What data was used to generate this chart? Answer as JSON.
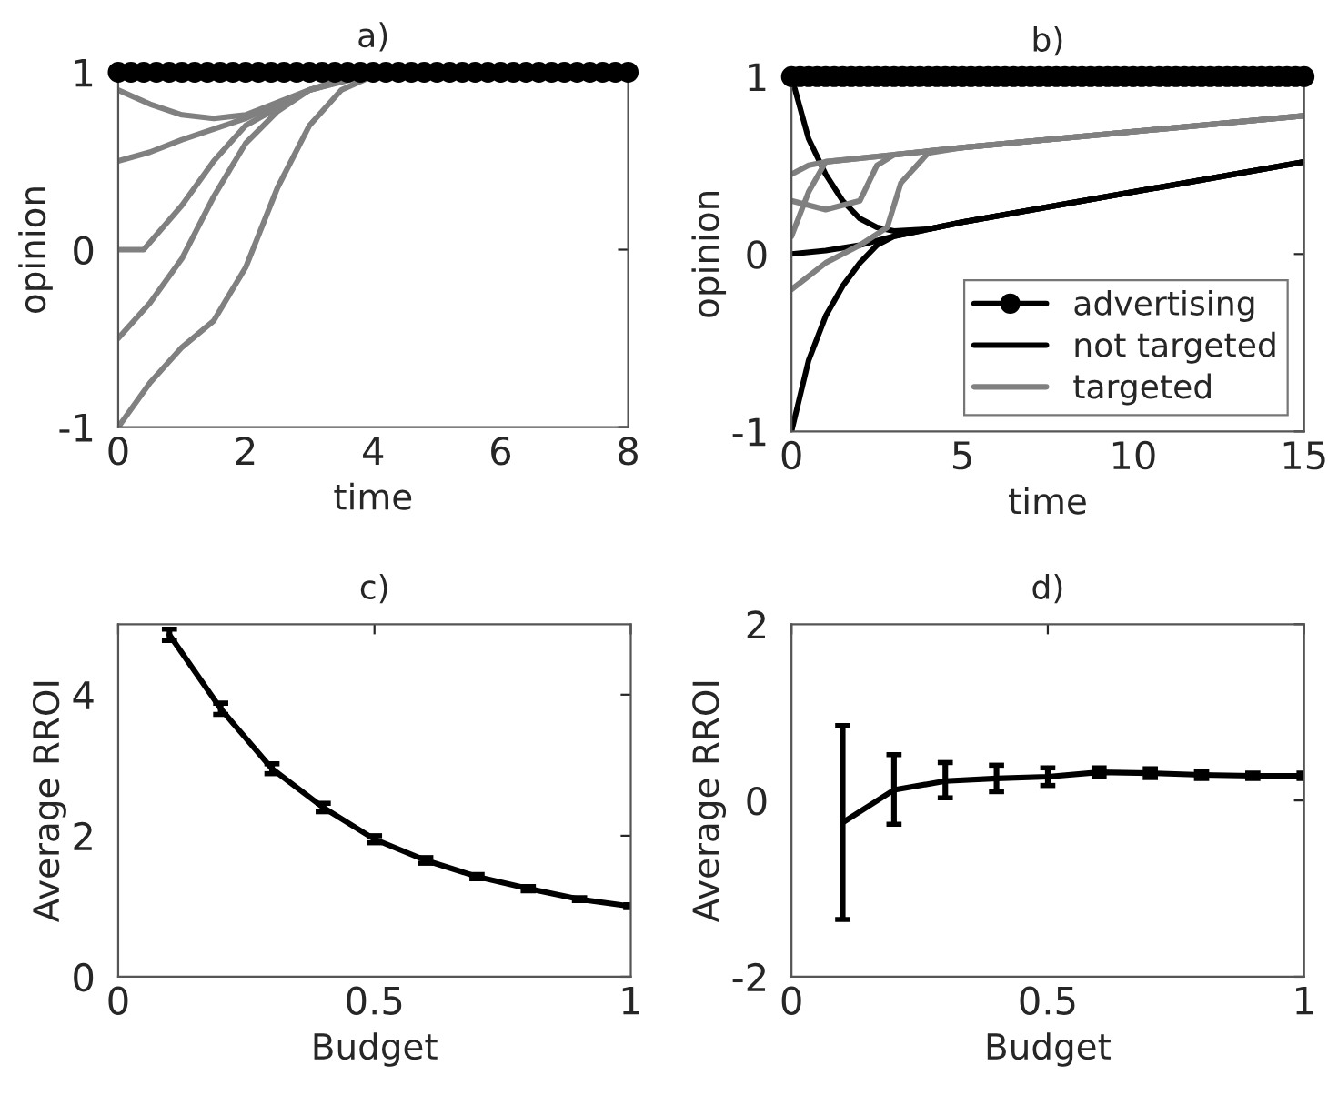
{
  "chart_data": [
    {
      "type": "line",
      "title": "a)",
      "xlabel": "time",
      "ylabel": "opinion",
      "xlim": [
        0,
        8
      ],
      "xticks": [
        0,
        2,
        4,
        6,
        8
      ],
      "ylim": [
        -1,
        1
      ],
      "yticks": [
        -1,
        0,
        1
      ],
      "grid": false,
      "legend": false,
      "series": [
        {
          "color": "#000000",
          "marker": "circle",
          "x": [
            0,
            0.2,
            0.4,
            0.6,
            0.8,
            1,
            1.2,
            1.4,
            1.6,
            1.8,
            2,
            2.2,
            2.4,
            2.6,
            2.8,
            3,
            3.2,
            3.4,
            3.6,
            3.8,
            4,
            4.2,
            4.4,
            4.6,
            4.8,
            5,
            5.2,
            5.4,
            5.6,
            5.8,
            6,
            6.2,
            6.4,
            6.6,
            6.8,
            7,
            7.2,
            7.4,
            7.6,
            7.8,
            8
          ],
          "values": [
            1,
            1,
            1,
            1,
            1,
            1,
            1,
            1,
            1,
            1,
            1,
            1,
            1,
            1,
            1,
            1,
            1,
            1,
            1,
            1,
            1,
            1,
            1,
            1,
            1,
            1,
            1,
            1,
            1,
            1,
            1,
            1,
            1,
            1,
            1,
            1,
            1,
            1,
            1,
            1,
            1
          ]
        },
        {
          "color": "#808080",
          "x": [
            0,
            0.5,
            1,
            1.5,
            2,
            2.5,
            3,
            3.5,
            4,
            8
          ],
          "values": [
            -1,
            -0.75,
            -0.55,
            -0.4,
            -0.1,
            0.35,
            0.7,
            0.9,
            0.98,
            1
          ]
        },
        {
          "color": "#808080",
          "x": [
            0,
            0.5,
            1,
            1.5,
            2,
            2.5,
            3,
            4,
            8
          ],
          "values": [
            -0.5,
            -0.3,
            -0.05,
            0.3,
            0.6,
            0.78,
            0.9,
            0.99,
            1
          ]
        },
        {
          "color": "#808080",
          "x": [
            0,
            0.4,
            1,
            1.5,
            2,
            2.5,
            3,
            4,
            8
          ],
          "values": [
            0,
            0,
            0.25,
            0.5,
            0.7,
            0.8,
            0.9,
            1,
            1
          ]
        },
        {
          "color": "#808080",
          "x": [
            0,
            0.5,
            1,
            1.5,
            2,
            3,
            4,
            8
          ],
          "values": [
            0.5,
            0.55,
            0.62,
            0.68,
            0.74,
            0.9,
            1,
            1
          ]
        },
        {
          "color": "#808080",
          "x": [
            0,
            0.5,
            1,
            1.5,
            2,
            2.5,
            3,
            3.5,
            4,
            8
          ],
          "values": [
            0.9,
            0.82,
            0.76,
            0.74,
            0.76,
            0.83,
            0.9,
            0.96,
            1,
            1
          ]
        }
      ]
    },
    {
      "type": "line",
      "title": "b)",
      "xlabel": "time",
      "ylabel": "opinion",
      "xlim": [
        0,
        15
      ],
      "xticks": [
        0,
        5,
        10,
        15
      ],
      "ylim": [
        -1,
        1
      ],
      "yticks": [
        -1,
        0,
        1
      ],
      "grid": false,
      "legend": "bottom right",
      "series": [
        {
          "name": "advertising",
          "color": "#000000",
          "marker": "circle",
          "x": [
            0,
            0.25,
            0.5,
            0.75,
            1,
            1.25,
            1.5,
            1.75,
            2,
            2.25,
            2.5,
            2.75,
            3,
            3.25,
            3.5,
            3.75,
            4,
            4.25,
            4.5,
            4.75,
            5,
            5.25,
            5.5,
            5.75,
            6,
            6.25,
            6.5,
            6.75,
            7,
            7.25,
            7.5,
            7.75,
            8,
            8.25,
            8.5,
            8.75,
            9,
            9.25,
            9.5,
            9.75,
            10,
            10.25,
            10.5,
            10.75,
            11,
            11.25,
            11.5,
            11.75,
            12,
            12.25,
            12.5,
            12.75,
            13,
            13.25,
            13.5,
            13.75,
            14,
            14.25,
            14.5,
            14.75,
            15
          ],
          "values": [
            1,
            1,
            1,
            1,
            1,
            1,
            1,
            1,
            1,
            1,
            1,
            1,
            1,
            1,
            1,
            1,
            1,
            1,
            1,
            1,
            1,
            1,
            1,
            1,
            1,
            1,
            1,
            1,
            1,
            1,
            1,
            1,
            1,
            1,
            1,
            1,
            1,
            1,
            1,
            1,
            1,
            1,
            1,
            1,
            1,
            1,
            1,
            1,
            1,
            1,
            1,
            1,
            1,
            1,
            1,
            1,
            1,
            1,
            1,
            1,
            1
          ]
        },
        {
          "name": "not targeted",
          "color": "#000000",
          "x": [
            0,
            0.5,
            1,
            1.5,
            2,
            2.5,
            3,
            4,
            5,
            10,
            15
          ],
          "values": [
            -1,
            -0.6,
            -0.35,
            -0.18,
            -0.05,
            0.05,
            0.1,
            0.14,
            0.18,
            0.35,
            0.52
          ]
        },
        {
          "color": "#000000",
          "x": [
            0,
            0.5,
            1,
            1.5,
            2,
            2.5,
            3,
            4,
            5,
            10,
            15
          ],
          "values": [
            1,
            0.65,
            0.45,
            0.3,
            0.2,
            0.15,
            0.13,
            0.14,
            0.18,
            0.35,
            0.52
          ]
        },
        {
          "color": "#000000",
          "x": [
            0,
            1,
            2,
            3,
            4,
            5,
            15
          ],
          "values": [
            0,
            0.02,
            0.05,
            0.1,
            0.14,
            0.18,
            0.52
          ]
        },
        {
          "name": "targeted",
          "color": "#808080",
          "x": [
            0,
            0.5,
            1,
            2,
            5,
            10,
            15
          ],
          "values": [
            0.1,
            0.35,
            0.52,
            0.54,
            0.6,
            0.69,
            0.78
          ]
        },
        {
          "color": "#808080",
          "x": [
            0,
            0.5,
            1,
            5,
            10,
            15
          ],
          "values": [
            0.45,
            0.5,
            0.52,
            0.6,
            0.69,
            0.78
          ]
        },
        {
          "color": "#808080",
          "x": [
            0,
            1,
            2,
            2.8,
            3.2,
            4,
            5,
            15
          ],
          "values": [
            -0.2,
            -0.05,
            0.05,
            0.15,
            0.4,
            0.57,
            0.6,
            0.78
          ]
        },
        {
          "color": "#808080",
          "x": [
            0,
            1,
            2,
            2.5,
            3,
            5,
            15
          ],
          "values": [
            0.3,
            0.25,
            0.3,
            0.5,
            0.56,
            0.6,
            0.78
          ]
        }
      ]
    },
    {
      "type": "line",
      "title": "c)",
      "xlabel": "Budget",
      "ylabel": "Average RROI",
      "xlim": [
        0,
        1
      ],
      "xticks": [
        0,
        {
          "value": 0.5,
          "label": "0.5"
        },
        1
      ],
      "ylim": [
        0,
        5
      ],
      "yticks": [
        0,
        2,
        4
      ],
      "grid": false,
      "legend": false,
      "series": [
        {
          "color": "#000000",
          "x": [
            0.1,
            0.2,
            0.3,
            0.4,
            0.5,
            0.6,
            0.7,
            0.8,
            0.9,
            1
          ],
          "values": [
            4.85,
            3.8,
            2.95,
            2.4,
            1.95,
            1.65,
            1.42,
            1.25,
            1.1,
            1.0
          ],
          "errors": [
            0.08,
            0.08,
            0.07,
            0.06,
            0.05,
            0.04,
            0.03,
            0.03,
            0.02,
            0.02
          ]
        }
      ]
    },
    {
      "type": "line",
      "title": "d)",
      "xlabel": "Budget",
      "ylabel": "Average RROI",
      "xlim": [
        0,
        1
      ],
      "xticks": [
        0,
        {
          "value": 0.5,
          "label": "0.5"
        },
        1
      ],
      "ylim": [
        -2,
        2
      ],
      "yticks": [
        -2,
        0,
        2
      ],
      "grid": false,
      "legend": false,
      "series": [
        {
          "color": "#000000",
          "x": [
            0.1,
            0.2,
            0.3,
            0.4,
            0.5,
            0.6,
            0.7,
            0.8,
            0.9,
            1
          ],
          "values": [
            -0.25,
            0.12,
            0.22,
            0.25,
            0.27,
            0.32,
            0.31,
            0.29,
            0.28,
            0.28
          ],
          "errors": [
            [
              -1.35,
              0.85
            ],
            [
              -0.27,
              0.52
            ],
            [
              0.03,
              0.43
            ],
            [
              0.1,
              0.4
            ],
            [
              0.17,
              0.37
            ],
            [
              0.27,
              0.37
            ],
            [
              0.26,
              0.36
            ],
            [
              0.25,
              0.33
            ],
            [
              0.25,
              0.31
            ],
            [
              0.25,
              0.31
            ]
          ]
        }
      ]
    }
  ]
}
